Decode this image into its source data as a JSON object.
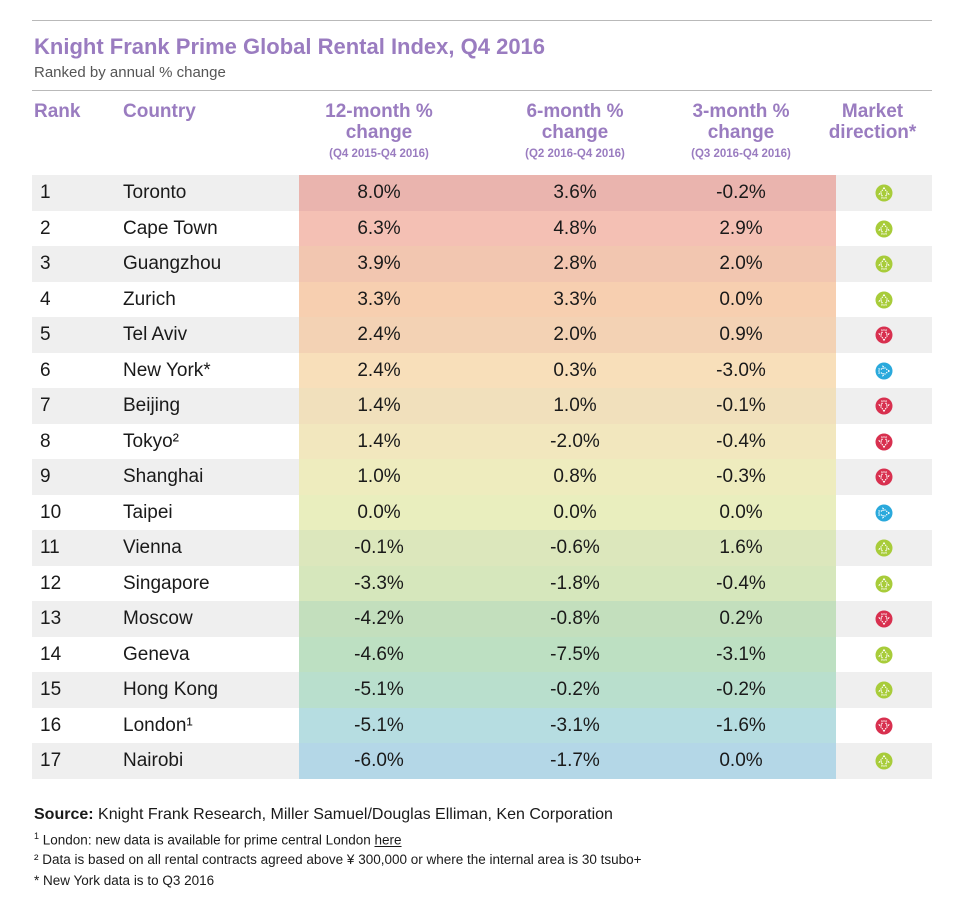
{
  "chart_data": {
    "type": "table",
    "title": "Knight Frank Prime Global Rental Index, Q4 2016",
    "subtitle": "Ranked by annual % change",
    "columns": {
      "rank": "Rank",
      "country": "Country",
      "m12": "12-month % change",
      "m12_period": "(Q4 2015-Q4 2016)",
      "m6": "6-month % change",
      "m6_period": "(Q2 2016-Q4 2016)",
      "m3": "3-month % change",
      "m3_period": "(Q3 2016-Q4 2016)",
      "direction": "Market direction*"
    },
    "rows": [
      {
        "rank": "1",
        "city": "Toronto",
        "m12": "8.0%",
        "m6": "3.6%",
        "m3": "-0.2%",
        "direction": "up"
      },
      {
        "rank": "2",
        "city": "Cape Town",
        "m12": "6.3%",
        "m6": "4.8%",
        "m3": "2.9%",
        "direction": "up"
      },
      {
        "rank": "3",
        "city": "Guangzhou",
        "m12": "3.9%",
        "m6": "2.8%",
        "m3": "2.0%",
        "direction": "up"
      },
      {
        "rank": "4",
        "city": "Zurich",
        "m12": "3.3%",
        "m6": "3.3%",
        "m3": "0.0%",
        "direction": "up"
      },
      {
        "rank": "5",
        "city": "Tel Aviv",
        "m12": "2.4%",
        "m6": "2.0%",
        "m3": "0.9%",
        "direction": "down"
      },
      {
        "rank": "6",
        "city": "New York*",
        "m12": "2.4%",
        "m6": "0.3%",
        "m3": "-3.0%",
        "direction": "flat"
      },
      {
        "rank": "7",
        "city": "Beijing",
        "m12": "1.4%",
        "m6": "1.0%",
        "m3": "-0.1%",
        "direction": "down"
      },
      {
        "rank": "8",
        "city": "Tokyo²",
        "m12": "1.4%",
        "m6": "-2.0%",
        "m3": "-0.4%",
        "direction": "down"
      },
      {
        "rank": "9",
        "city": "Shanghai",
        "m12": "1.0%",
        "m6": "0.8%",
        "m3": "-0.3%",
        "direction": "down"
      },
      {
        "rank": "10",
        "city": "Taipei",
        "m12": "0.0%",
        "m6": "0.0%",
        "m3": "0.0%",
        "direction": "flat"
      },
      {
        "rank": "11",
        "city": "Vienna",
        "m12": "-0.1%",
        "m6": "-0.6%",
        "m3": "1.6%",
        "direction": "up"
      },
      {
        "rank": "12",
        "city": "Singapore",
        "m12": "-3.3%",
        "m6": "-1.8%",
        "m3": "-0.4%",
        "direction": "up"
      },
      {
        "rank": "13",
        "city": "Moscow",
        "m12": "-4.2%",
        "m6": "-0.8%",
        "m3": "0.2%",
        "direction": "down"
      },
      {
        "rank": "14",
        "city": "Geneva",
        "m12": "-4.6%",
        "m6": "-7.5%",
        "m3": "-3.1%",
        "direction": "up"
      },
      {
        "rank": "15",
        "city": "Hong Kong",
        "m12": "-5.1%",
        "m6": "-0.2%",
        "m3": "-0.2%",
        "direction": "up"
      },
      {
        "rank": "16",
        "city": "London¹",
        "m12": "-5.1%",
        "m6": "-3.1%",
        "m3": "-1.6%",
        "direction": "down"
      },
      {
        "rank": "17",
        "city": "Nairobi",
        "m12": "-6.0%",
        "m6": "-1.7%",
        "m3": "0.0%",
        "direction": "up"
      }
    ],
    "heat_colors": [
      "#eab4ae",
      "#f4c0b4",
      "#f2c6b0",
      "#f7cfb0",
      "#f3d2b4",
      "#f8dfba",
      "#f1e0bc",
      "#f2e7be",
      "#eeecbe",
      "#e9eebe",
      "#dce7bc",
      "#d6e7bc",
      "#c3dfbd",
      "#bde0c2",
      "#b9dfcd",
      "#b6dde1",
      "#b4d7e7"
    ],
    "direction_colors": {
      "up": "#a8cc3a",
      "down": "#d8304f",
      "flat": "#2aa9dc"
    }
  },
  "footer": {
    "source_label": "Source:",
    "source_text": " Knight Frank Research, Miller Samuel/Douglas Elliman, Ken Corporation",
    "note1_mark": "1",
    "note1_text": " London: new data is available for prime central London ",
    "note1_link": "here",
    "note2": "² Data is based on all rental contracts agreed above ¥ 300,000 or where the internal area is 30 tsubo+",
    "note3": "* New York data is to Q3 2016"
  }
}
